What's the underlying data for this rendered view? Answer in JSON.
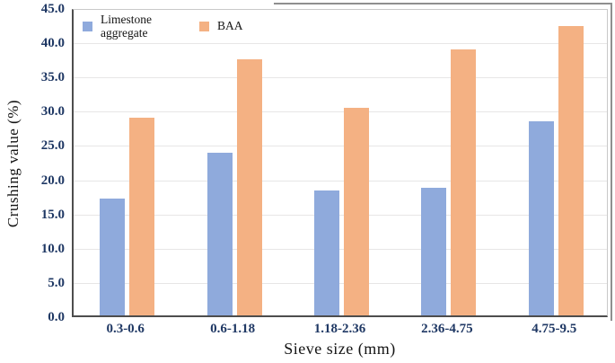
{
  "chart_data": {
    "type": "bar",
    "categories": [
      "0.3-0.6",
      "0.6-1.18",
      "1.18-2.36",
      "2.36-4.75",
      "4.75-9.5"
    ],
    "series": [
      {
        "name": "Limestone aggregate",
        "color": "#8FAADC",
        "values": [
          17.1,
          23.7,
          18.2,
          18.6,
          28.3
        ]
      },
      {
        "name": "BAA",
        "color": "#F4B183",
        "values": [
          28.8,
          37.4,
          30.3,
          38.8,
          42.3
        ]
      }
    ],
    "xlabel": "Sieve size (mm)",
    "ylabel": "Crushing value (%)",
    "ylim": [
      0,
      45
    ],
    "ytick_step": 5,
    "ytick_labels": [
      "0.0",
      "5.0",
      "10.0",
      "15.0",
      "20.0",
      "25.0",
      "30.0",
      "35.0",
      "40.0",
      "45.0"
    ],
    "grid": true,
    "legend_position": "top-left-inside"
  },
  "style": {
    "tick_label_color": "#1F3864",
    "axis_title_color": "#141414",
    "gridline_color": "#E7E6E6",
    "bar_colors": {
      "limestone_aggregate": "#8FAADC",
      "baa": "#F4B183"
    }
  }
}
